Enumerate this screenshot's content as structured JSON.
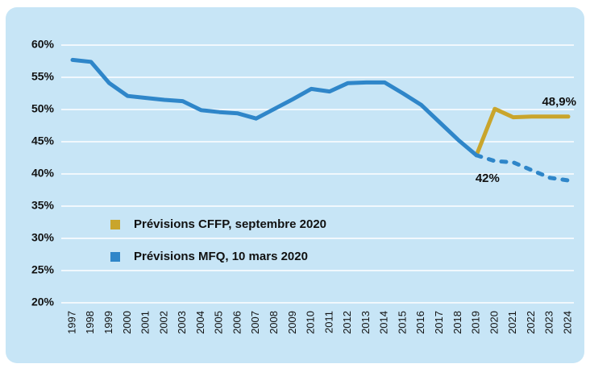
{
  "chart_data": {
    "type": "line",
    "categories": [
      "1997",
      "1998",
      "1999",
      "2000",
      "2001",
      "2002",
      "2003",
      "2004",
      "2005",
      "2006",
      "2007",
      "2008",
      "2009",
      "2010",
      "2011",
      "2012",
      "2013",
      "2014",
      "2015",
      "2016",
      "2017",
      "2018",
      "2019",
      "2020",
      "2021",
      "2022",
      "2023",
      "2024"
    ],
    "series": [
      {
        "name": "Prévisions CFFP, septembre 2020",
        "color": "#c9a52c",
        "values": [
          null,
          null,
          null,
          null,
          null,
          null,
          null,
          null,
          null,
          null,
          null,
          null,
          null,
          null,
          null,
          null,
          null,
          null,
          null,
          null,
          null,
          null,
          42.9,
          50.1,
          48.8,
          48.9,
          48.9,
          48.9
        ],
        "value_labels": [
          null,
          null,
          null,
          null,
          null,
          null,
          null,
          null,
          null,
          null,
          null,
          null,
          null,
          null,
          null,
          null,
          null,
          null,
          null,
          null,
          null,
          null,
          null,
          null,
          null,
          null,
          null,
          "48,9%"
        ]
      },
      {
        "name": "Prévisions MFQ, 10 mars 2020",
        "color": "#2f86c9",
        "forecast_from": "2019",
        "values": [
          57.7,
          57.4,
          54.1,
          52.1,
          51.8,
          51.5,
          51.3,
          49.9,
          49.6,
          49.4,
          48.6,
          50.1,
          51.6,
          53.2,
          52.8,
          54.1,
          54.2,
          54.2,
          52.5,
          50.7,
          48.0,
          45.3,
          42.9,
          42,
          41.8,
          40.6,
          39.4,
          39.0
        ],
        "value_labels": [
          null,
          null,
          null,
          null,
          null,
          null,
          null,
          null,
          null,
          null,
          null,
          null,
          null,
          null,
          null,
          null,
          null,
          null,
          null,
          null,
          null,
          null,
          null,
          "42%",
          null,
          null,
          null,
          null
        ]
      }
    ],
    "ylim": [
      20,
      60
    ],
    "yticks": [
      {
        "value": 20,
        "label": "20%"
      },
      {
        "value": 25,
        "label": "25%"
      },
      {
        "value": 30,
        "label": "30%"
      },
      {
        "value": 35,
        "label": "35%"
      },
      {
        "value": 40,
        "label": "40%"
      },
      {
        "value": 45,
        "label": "45%"
      },
      {
        "value": 50,
        "label": "50%"
      },
      {
        "value": 55,
        "label": "55%"
      },
      {
        "value": 60,
        "label": "60%"
      }
    ],
    "grid": true
  }
}
